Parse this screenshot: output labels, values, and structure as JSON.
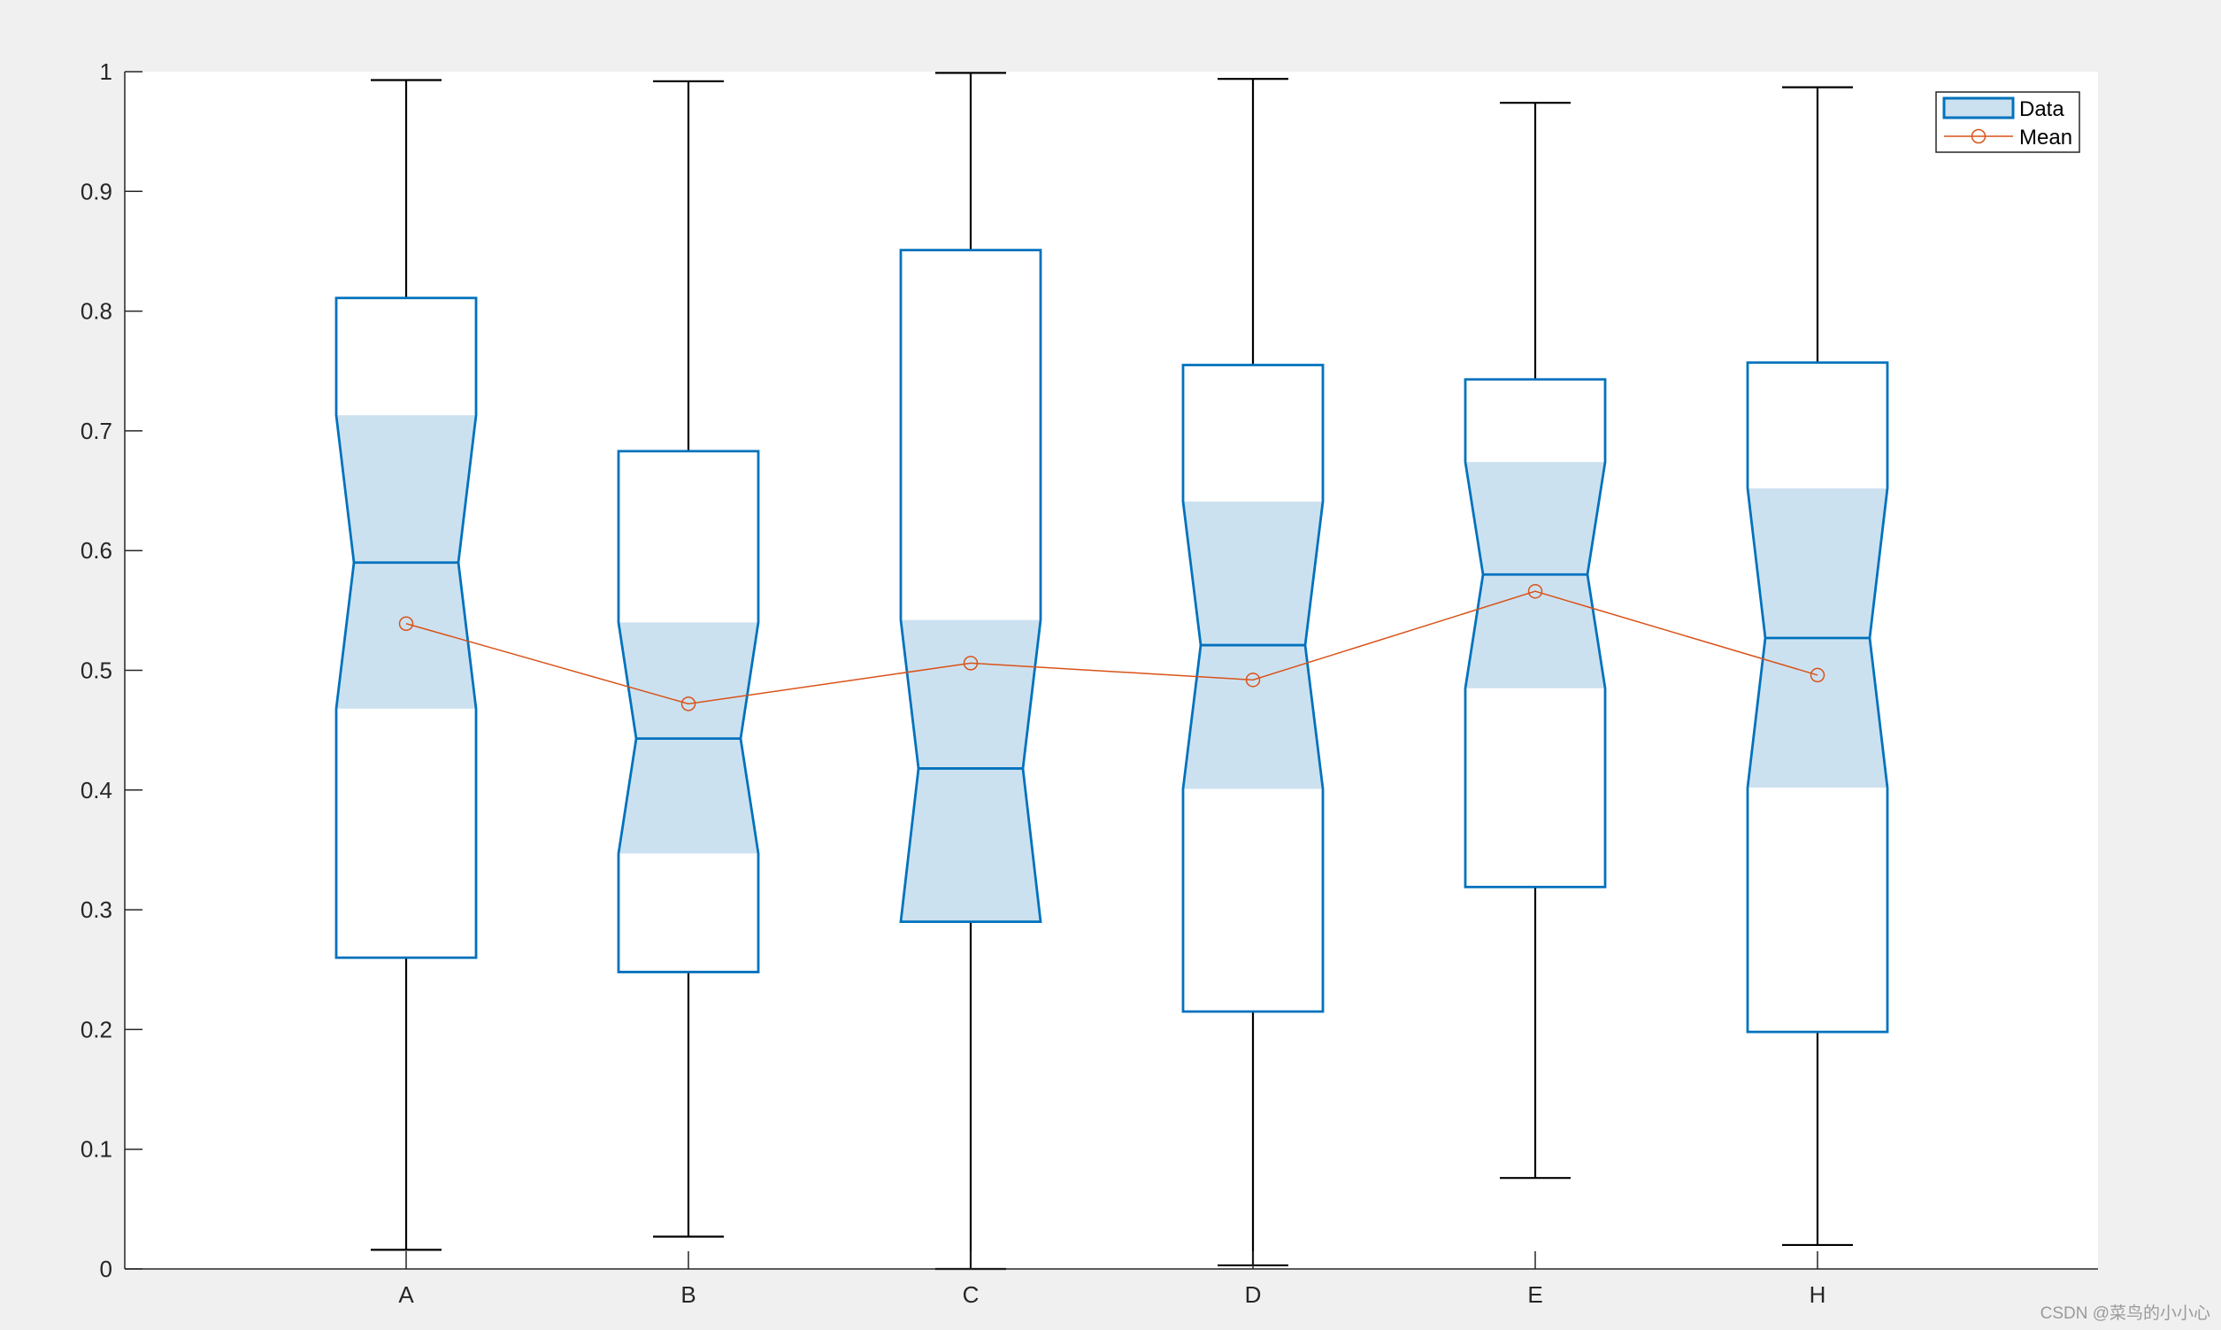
{
  "chart_data": {
    "type": "boxplot",
    "notched": true,
    "categories": [
      "A",
      "B",
      "C",
      "D",
      "E",
      "H"
    ],
    "boxes": [
      {
        "label": "A",
        "whisker_low": 0.016,
        "q1": 0.26,
        "notch_low": 0.468,
        "median": 0.59,
        "notch_high": 0.713,
        "q3": 0.811,
        "whisker_high": 0.993,
        "mean": 0.539
      },
      {
        "label": "B",
        "whisker_low": 0.027,
        "q1": 0.248,
        "notch_low": 0.347,
        "median": 0.443,
        "notch_high": 0.54,
        "q3": 0.683,
        "whisker_high": 0.992,
        "mean": 0.472
      },
      {
        "label": "C",
        "whisker_low": 0.0,
        "q1": 0.29,
        "notch_low": 0.29,
        "median": 0.418,
        "notch_high": 0.542,
        "q3": 0.851,
        "whisker_high": 0.999,
        "mean": 0.506
      },
      {
        "label": "D",
        "whisker_low": 0.003,
        "q1": 0.215,
        "notch_low": 0.401,
        "median": 0.521,
        "notch_high": 0.641,
        "q3": 0.755,
        "whisker_high": 0.994,
        "mean": 0.492
      },
      {
        "label": "E",
        "whisker_low": 0.076,
        "q1": 0.319,
        "notch_low": 0.485,
        "median": 0.58,
        "notch_high": 0.674,
        "q3": 0.743,
        "whisker_high": 0.974,
        "mean": 0.566
      },
      {
        "label": "H",
        "whisker_low": 0.02,
        "q1": 0.198,
        "notch_low": 0.402,
        "median": 0.527,
        "notch_high": 0.652,
        "q3": 0.757,
        "whisker_high": 0.987,
        "mean": 0.496
      }
    ],
    "series": [
      {
        "name": "Data",
        "kind": "box"
      },
      {
        "name": "Mean",
        "kind": "line-marker",
        "values": [
          0.539,
          0.472,
          0.506,
          0.492,
          0.566,
          0.496
        ]
      }
    ],
    "ylim": [
      0,
      1
    ],
    "yticks": [
      0,
      0.1,
      0.2,
      0.3,
      0.4,
      0.5,
      0.6,
      0.7,
      0.8,
      0.9,
      1
    ],
    "ytick_labels": [
      "0",
      "0.1",
      "0.2",
      "0.3",
      "0.4",
      "0.5",
      "0.6",
      "0.7",
      "0.8",
      "0.9",
      "1"
    ],
    "xlabel": "",
    "ylabel": "",
    "title": "",
    "grid": false,
    "legend": {
      "position": "top-right",
      "entries": [
        "Data",
        "Mean"
      ]
    },
    "colors": {
      "box_edge": "#0072bd",
      "notch_fill": "#cce1f0",
      "whisker": "#000000",
      "mean": "#d95319",
      "axes": "#262626",
      "plot_background": "#ffffff",
      "figure_background": "#f0f0f0"
    }
  },
  "watermark": "CSDN @菜鸟的小小心"
}
